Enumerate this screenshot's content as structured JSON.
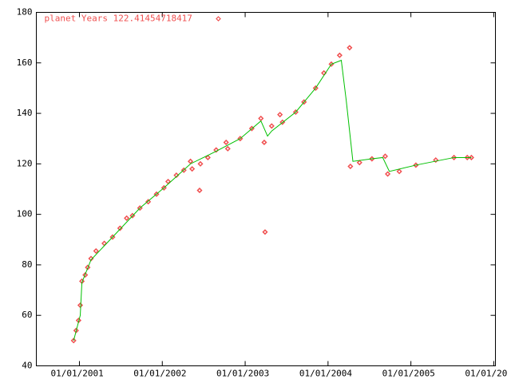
{
  "chart_data": {
    "type": "scatter",
    "legend": "top-left",
    "series": [
      {
        "name": "planet Years 122.41454718417",
        "color": "#f05050",
        "marker": "diamond",
        "x": [
          2000.93,
          2000.96,
          2000.99,
          2001.01,
          2001.03,
          2001.07,
          2001.1,
          2001.14,
          2001.2,
          2001.3,
          2001.4,
          2001.49,
          2001.57,
          2001.64,
          2001.73,
          2001.83,
          2001.93,
          2002.02,
          2002.07,
          2002.17,
          2002.26,
          2002.34,
          2002.36,
          2002.45,
          2002.46,
          2002.55,
          2002.65,
          2002.77,
          2002.79,
          2002.94,
          2003.08,
          2003.19,
          2003.23,
          2003.24,
          2003.32,
          2003.42,
          2003.45,
          2003.61,
          2003.71,
          2003.85,
          2003.95,
          2004.04,
          2004.14,
          2004.26,
          2004.27,
          2004.38,
          2004.53,
          2004.69,
          2004.72,
          2004.86,
          2005.06,
          2005.3,
          2005.52,
          2005.68,
          2005.73
        ],
        "values": [
          50,
          54,
          58,
          64,
          73.5,
          76,
          79,
          82.5,
          85.5,
          88.5,
          91,
          94.5,
          98.5,
          99.5,
          102.5,
          105,
          108,
          110.5,
          113,
          115.5,
          117.5,
          121,
          118,
          109.5,
          120,
          122.5,
          125.5,
          128.5,
          126,
          130,
          134,
          138,
          128.5,
          93,
          135,
          139.5,
          136.5,
          140.5,
          144.5,
          150,
          156,
          159.5,
          163,
          166,
          119,
          120.5,
          122,
          123,
          116,
          117,
          119.5,
          121.5,
          122.5,
          122.5,
          122.5
        ]
      },
      {
        "color": "#00c000",
        "style": "line",
        "x": [
          2000.93,
          2001.01,
          2001.03,
          2001.14,
          2001.4,
          2001.73,
          2002.02,
          2002.34,
          2002.65,
          2002.94,
          2003.19,
          2003.27,
          2003.32,
          2003.61,
          2003.85,
          2004.04,
          2004.16,
          2004.22,
          2004.3,
          2004.53,
          2004.66,
          2004.74,
          2005.06,
          2005.52,
          2005.73
        ],
        "values": [
          50,
          60,
          73,
          82,
          91,
          102.5,
          110.5,
          120,
          125,
          130,
          137,
          131,
          133,
          140.5,
          150,
          159.5,
          161,
          145,
          121,
          122,
          122.5,
          117,
          119.5,
          122.5,
          122.5
        ]
      }
    ],
    "xlim": [
      2000.48,
      2006.02
    ],
    "xticks": [
      {
        "value": 2001,
        "label": "01/01/2001"
      },
      {
        "value": 2002,
        "label": "01/01/2002"
      },
      {
        "value": 2003,
        "label": "01/01/2003"
      },
      {
        "value": 2004,
        "label": "01/01/2004"
      },
      {
        "value": 2005,
        "label": "01/01/2005"
      },
      {
        "value": 2006,
        "label": "01/01/20"
      }
    ],
    "ylim": [
      40,
      180
    ],
    "yticks": [
      40,
      60,
      80,
      100,
      120,
      140,
      160,
      180
    ],
    "grid": false
  }
}
